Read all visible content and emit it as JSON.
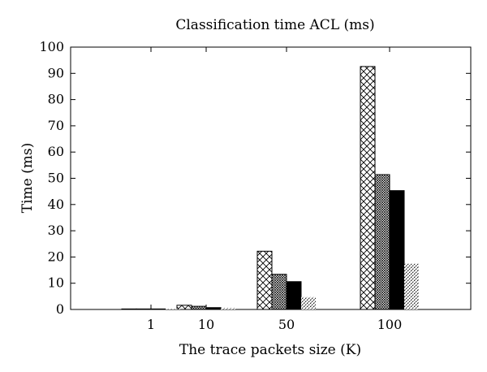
{
  "chart_data": {
    "type": "bar",
    "title": "Classification time ACL (ms)",
    "xlabel": "The trace packets size (K)",
    "ylabel": "Time (ms)",
    "categories": [
      "1",
      "10",
      "50",
      "100"
    ],
    "ylim": [
      0,
      100
    ],
    "yticks": [
      0,
      10,
      20,
      30,
      40,
      50,
      60,
      70,
      80,
      90,
      100
    ],
    "grid": false,
    "legend": "none",
    "series": [
      {
        "values": [
          0.2,
          1.6,
          22.2,
          92.6
        ],
        "pattern": "crosshatch",
        "color": "#000000"
      },
      {
        "values": [
          0.2,
          1.2,
          13.4,
          51.4
        ],
        "pattern": "fine-crosshatch",
        "color": "#000000"
      },
      {
        "values": [
          0.2,
          0.7,
          10.6,
          45.3
        ],
        "pattern": "solid",
        "color": "#000000"
      },
      {
        "values": [
          0.1,
          0.5,
          4.7,
          17.4
        ],
        "pattern": "diagonal-dashes",
        "color": "#000000"
      }
    ]
  }
}
